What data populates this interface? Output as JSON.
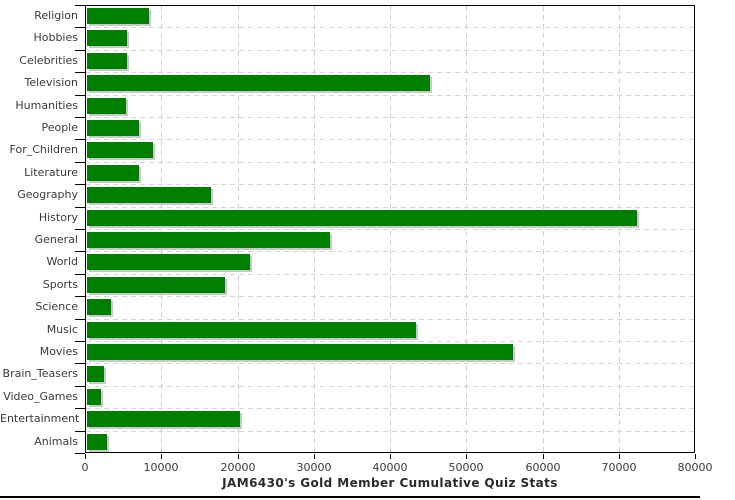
{
  "chart_data": {
    "type": "bar",
    "orientation": "horizontal",
    "title": "JAM6430's Gold Member Cumulative Quiz Stats",
    "categories": [
      "Religion",
      "Hobbies",
      "Celebrities",
      "Television",
      "Humanities",
      "People",
      "For_Children",
      "Literature",
      "Geography",
      "History",
      "General",
      "World",
      "Sports",
      "Science",
      "Music",
      "Movies",
      "Brain_Teasers",
      "Video_Games",
      "Entertainment",
      "Animals"
    ],
    "values": [
      8200,
      5200,
      5300,
      45100,
      5100,
      6900,
      8700,
      6800,
      16300,
      72400,
      32000,
      21400,
      18100,
      3100,
      43300,
      56000,
      2300,
      1900,
      20100,
      2600
    ],
    "xlabel": "",
    "ylabel": "",
    "xlim": [
      0,
      80000
    ],
    "x_tick_step": 10000,
    "x_tick_labels": [
      "0",
      "10000",
      "20000",
      "30000",
      "40000",
      "50000",
      "60000",
      "70000",
      "80000"
    ],
    "grid": true,
    "legend_position": "none",
    "colors": {
      "bar": "#008000",
      "bar_shadow": "#c9c9c9",
      "grid_vertical": "#c9d3da",
      "grid_horizontal": "#d6d6d6",
      "axis": "#000000",
      "tick_label": "#3a3a3a",
      "category_label": "#3a3a3a",
      "title": "#2b2b2b"
    }
  }
}
